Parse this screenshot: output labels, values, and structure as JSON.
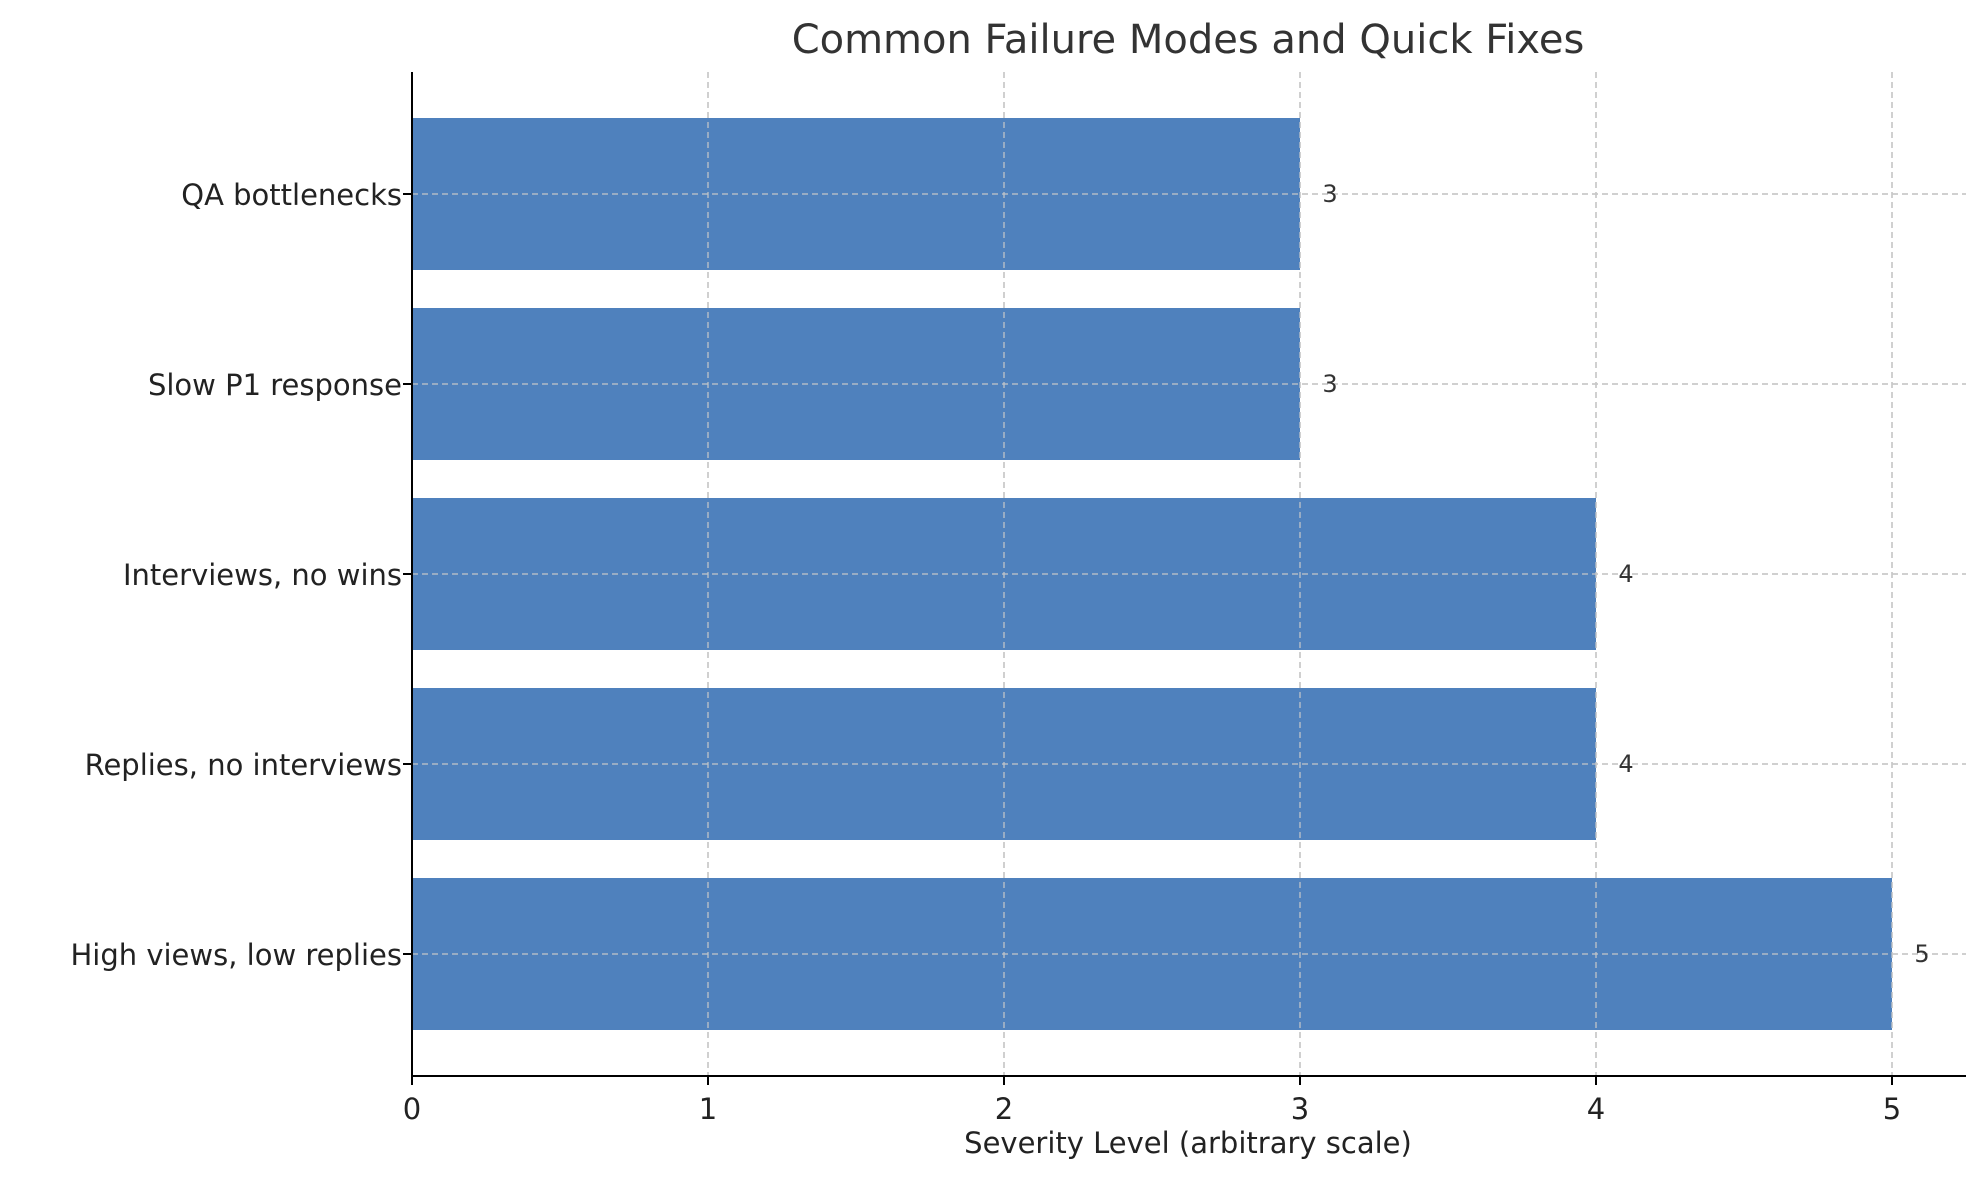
{
  "chart_data": {
    "type": "bar",
    "orientation": "horizontal",
    "title": "Common Failure Modes and Quick Fixes",
    "xlabel": "Severity Level (arbitrary scale)",
    "ylabel": "",
    "categories": [
      "High views, low replies",
      "Replies, no interviews",
      "Interviews, no wins",
      "Slow P1 response",
      "QA bottlenecks"
    ],
    "values": [
      5,
      4,
      4,
      3,
      3
    ],
    "value_labels": [
      "5",
      "4",
      "4",
      "3",
      "3"
    ],
    "xlim": [
      0,
      5.25
    ],
    "xticks": [
      0,
      1,
      2,
      3,
      4,
      5
    ],
    "grid": true,
    "legend": "none",
    "bar_color": "#4f81bd",
    "grid_color": "#c8c8c8"
  }
}
